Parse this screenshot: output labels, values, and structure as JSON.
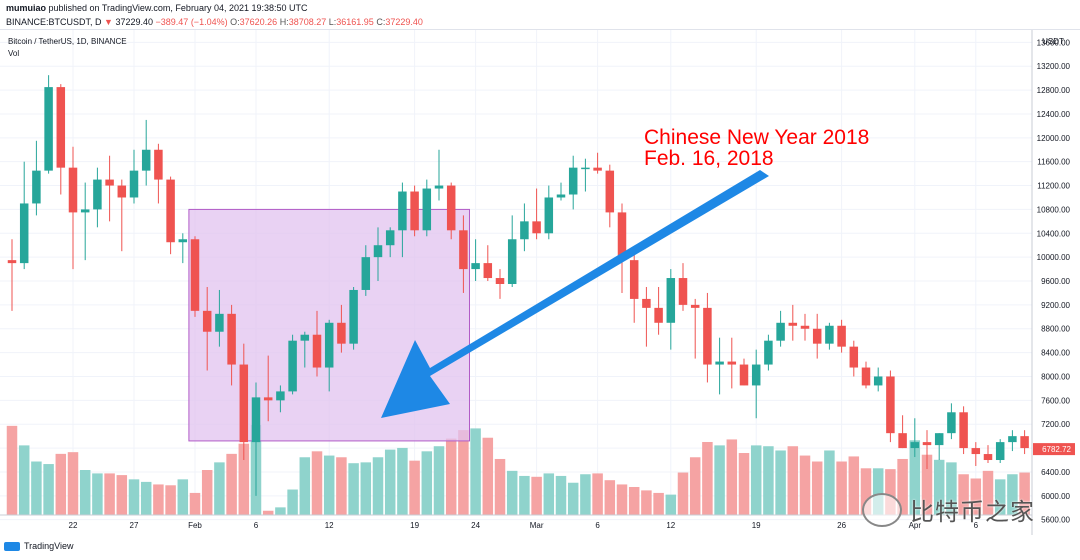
{
  "header": {
    "user": "mumuiao",
    "published": " published on TradingView.com, February 04, 2021 19:38:50 UTC",
    "symbol": "BINANCE:BTCUSDT, D",
    "last": "37229.40",
    "change": "−389.47 (−1.04%)",
    "o_label": "O:",
    "o": "37620.26",
    "h_label": "H:",
    "h": "38708.27",
    "l_label": "L:",
    "l": "36161.95",
    "c_label": "C:",
    "c": "37229.40"
  },
  "legend": {
    "title": "Bitcoin / TetherUS, 1D, BINANCE",
    "vol": "Vol"
  },
  "annotation": {
    "line1": "Chinese New Year 2018",
    "line2": "Feb. 16, 2018",
    "color": "#ff0000"
  },
  "branding": {
    "tradingview": "TradingView",
    "watermark": "比特币之家"
  },
  "colors": {
    "up": "#26a69a",
    "down": "#ef5350",
    "up_vol": "#8fd3cc",
    "down_vol": "#f5a3a3",
    "box_fill": "#e1c3ef",
    "box_stroke": "#b25cc7",
    "arrow": "#1e88e5",
    "price_tag": "#ef5350"
  },
  "chart_data": {
    "type": "candlestick",
    "price_axis": {
      "unit": "USDT",
      "ticks": [
        13600,
        13200,
        12800,
        12400,
        12000,
        11600,
        11200,
        10800,
        10400,
        10000,
        9600,
        9200,
        8800,
        8400,
        8000,
        7600,
        7200,
        6800,
        6400,
        6000,
        5600
      ],
      "range": [
        5360,
        13740
      ],
      "last_price_label": "6782.72",
      "last_price": 6782.72
    },
    "x_ticks": [
      {
        "label": "22",
        "index": 5
      },
      {
        "label": "27",
        "index": 10
      },
      {
        "label": "Feb",
        "index": 15
      },
      {
        "label": "6",
        "index": 20
      },
      {
        "label": "12",
        "index": 26
      },
      {
        "label": "19",
        "index": 33
      },
      {
        "label": "24",
        "index": 38
      },
      {
        "label": "Mar",
        "index": 43
      },
      {
        "label": "6",
        "index": 48
      },
      {
        "label": "12",
        "index": 54
      },
      {
        "label": "19",
        "index": 61
      },
      {
        "label": "26",
        "index": 68
      },
      {
        "label": "Apr",
        "index": 74
      },
      {
        "label": "6",
        "index": 79
      }
    ],
    "highlight_range": {
      "from_index": 14.5,
      "to_index": 37.5,
      "top": 10800,
      "bottom": 6920
    },
    "candles": [
      {
        "o": 9950,
        "h": 10300,
        "l": 9100,
        "c": 9900
      },
      {
        "o": 9900,
        "h": 11600,
        "l": 9800,
        "c": 10900
      },
      {
        "o": 10900,
        "h": 11950,
        "l": 10700,
        "c": 11450
      },
      {
        "o": 11450,
        "h": 13050,
        "l": 11400,
        "c": 12850
      },
      {
        "o": 12850,
        "h": 12900,
        "l": 11050,
        "c": 11500
      },
      {
        "o": 11500,
        "h": 11850,
        "l": 9800,
        "c": 10750
      },
      {
        "o": 10750,
        "h": 11250,
        "l": 9950,
        "c": 10800
      },
      {
        "o": 10800,
        "h": 11500,
        "l": 10500,
        "c": 11300
      },
      {
        "o": 11300,
        "h": 11700,
        "l": 10600,
        "c": 11200
      },
      {
        "o": 11200,
        "h": 11300,
        "l": 10100,
        "c": 11000
      },
      {
        "o": 11000,
        "h": 11800,
        "l": 10900,
        "c": 11450
      },
      {
        "o": 11450,
        "h": 12300,
        "l": 11200,
        "c": 11800
      },
      {
        "o": 11800,
        "h": 11900,
        "l": 10900,
        "c": 11300
      },
      {
        "o": 11300,
        "h": 11350,
        "l": 10050,
        "c": 10250
      },
      {
        "o": 10250,
        "h": 10400,
        "l": 9900,
        "c": 10300
      },
      {
        "o": 10300,
        "h": 10350,
        "l": 9000,
        "c": 9100
      },
      {
        "o": 9100,
        "h": 9500,
        "l": 8100,
        "c": 8750
      },
      {
        "o": 8750,
        "h": 9450,
        "l": 8500,
        "c": 9050
      },
      {
        "o": 9050,
        "h": 9200,
        "l": 7850,
        "c": 8200
      },
      {
        "o": 8200,
        "h": 8550,
        "l": 6600,
        "c": 6900
      },
      {
        "o": 6900,
        "h": 7900,
        "l": 6000,
        "c": 7650
      },
      {
        "o": 7650,
        "h": 8350,
        "l": 7250,
        "c": 7600
      },
      {
        "o": 7600,
        "h": 7850,
        "l": 7400,
        "c": 7750
      },
      {
        "o": 7750,
        "h": 8700,
        "l": 7700,
        "c": 8600
      },
      {
        "o": 8600,
        "h": 8750,
        "l": 8150,
        "c": 8700
      },
      {
        "o": 8700,
        "h": 9100,
        "l": 8000,
        "c": 8150
      },
      {
        "o": 8150,
        "h": 8950,
        "l": 7750,
        "c": 8900
      },
      {
        "o": 8900,
        "h": 9200,
        "l": 8400,
        "c": 8550
      },
      {
        "o": 8550,
        "h": 9500,
        "l": 8450,
        "c": 9450
      },
      {
        "o": 9450,
        "h": 10200,
        "l": 9350,
        "c": 10000
      },
      {
        "o": 10000,
        "h": 10500,
        "l": 9600,
        "c": 10200
      },
      {
        "o": 10200,
        "h": 10500,
        "l": 10000,
        "c": 10450
      },
      {
        "o": 10450,
        "h": 11250,
        "l": 10000,
        "c": 11100
      },
      {
        "o": 11100,
        "h": 11200,
        "l": 10350,
        "c": 10450
      },
      {
        "o": 10450,
        "h": 11300,
        "l": 10350,
        "c": 11150
      },
      {
        "o": 11150,
        "h": 11800,
        "l": 10950,
        "c": 11200
      },
      {
        "o": 11200,
        "h": 11250,
        "l": 10300,
        "c": 10450
      },
      {
        "o": 10450,
        "h": 10700,
        "l": 9400,
        "c": 9800
      },
      {
        "o": 9800,
        "h": 10300,
        "l": 9600,
        "c": 9900
      },
      {
        "o": 9900,
        "h": 10200,
        "l": 9600,
        "c": 9650
      },
      {
        "o": 9650,
        "h": 9800,
        "l": 9300,
        "c": 9550
      },
      {
        "o": 9550,
        "h": 10700,
        "l": 9500,
        "c": 10300
      },
      {
        "o": 10300,
        "h": 10900,
        "l": 10100,
        "c": 10600
      },
      {
        "o": 10600,
        "h": 11150,
        "l": 10300,
        "c": 10400
      },
      {
        "o": 10400,
        "h": 11200,
        "l": 10300,
        "c": 11000
      },
      {
        "o": 11000,
        "h": 11250,
        "l": 10950,
        "c": 11050
      },
      {
        "o": 11050,
        "h": 11700,
        "l": 10800,
        "c": 11500
      },
      {
        "o": 11500,
        "h": 11650,
        "l": 11100,
        "c": 11500
      },
      {
        "o": 11500,
        "h": 11750,
        "l": 11400,
        "c": 11450
      },
      {
        "o": 11450,
        "h": 11550,
        "l": 10500,
        "c": 10750
      },
      {
        "o": 10750,
        "h": 10900,
        "l": 9400,
        "c": 9950
      },
      {
        "o": 9950,
        "h": 10050,
        "l": 8900,
        "c": 9300
      },
      {
        "o": 9300,
        "h": 9500,
        "l": 8500,
        "c": 9150
      },
      {
        "o": 9150,
        "h": 9500,
        "l": 8700,
        "c": 8900
      },
      {
        "o": 8900,
        "h": 9800,
        "l": 8450,
        "c": 9650
      },
      {
        "o": 9650,
        "h": 9900,
        "l": 9100,
        "c": 9200
      },
      {
        "o": 9200,
        "h": 9300,
        "l": 8300,
        "c": 9150
      },
      {
        "o": 9150,
        "h": 9400,
        "l": 7900,
        "c": 8200
      },
      {
        "o": 8200,
        "h": 8650,
        "l": 7700,
        "c": 8250
      },
      {
        "o": 8250,
        "h": 8650,
        "l": 7800,
        "c": 8200
      },
      {
        "o": 8200,
        "h": 8300,
        "l": 7850,
        "c": 7850
      },
      {
        "o": 7850,
        "h": 8450,
        "l": 7300,
        "c": 8200
      },
      {
        "o": 8200,
        "h": 8700,
        "l": 8100,
        "c": 8600
      },
      {
        "o": 8600,
        "h": 9100,
        "l": 8500,
        "c": 8900
      },
      {
        "o": 8900,
        "h": 9200,
        "l": 8600,
        "c": 8850
      },
      {
        "o": 8850,
        "h": 9050,
        "l": 8600,
        "c": 8800
      },
      {
        "o": 8800,
        "h": 9050,
        "l": 8300,
        "c": 8550
      },
      {
        "o": 8550,
        "h": 8900,
        "l": 8450,
        "c": 8850
      },
      {
        "o": 8850,
        "h": 8950,
        "l": 8400,
        "c": 8500
      },
      {
        "o": 8500,
        "h": 8600,
        "l": 8000,
        "c": 8150
      },
      {
        "o": 8150,
        "h": 8250,
        "l": 7800,
        "c": 7850
      },
      {
        "o": 7850,
        "h": 8150,
        "l": 7750,
        "c": 8000
      },
      {
        "o": 8000,
        "h": 8100,
        "l": 6900,
        "c": 7050
      },
      {
        "o": 7050,
        "h": 7350,
        "l": 6800,
        "c": 6800
      },
      {
        "o": 6800,
        "h": 7300,
        "l": 6650,
        "c": 6900
      },
      {
        "o": 6900,
        "h": 7100,
        "l": 6450,
        "c": 6850
      },
      {
        "o": 6850,
        "h": 7050,
        "l": 6600,
        "c": 7050
      },
      {
        "o": 7050,
        "h": 7550,
        "l": 6950,
        "c": 7400
      },
      {
        "o": 7400,
        "h": 7500,
        "l": 6700,
        "c": 6800
      },
      {
        "o": 6800,
        "h": 6900,
        "l": 6500,
        "c": 6700
      },
      {
        "o": 6700,
        "h": 6850,
        "l": 6550,
        "c": 6600
      },
      {
        "o": 6600,
        "h": 6950,
        "l": 6550,
        "c": 6900
      },
      {
        "o": 6900,
        "h": 7100,
        "l": 6750,
        "c": 7000
      },
      {
        "o": 7000,
        "h": 7100,
        "l": 6700,
        "c": 6800
      },
      {
        "o": 6800,
        "h": 7000,
        "l": 6550,
        "c": 6780
      }
    ],
    "volume": [
      1.05,
      0.82,
      0.63,
      0.6,
      0.72,
      0.74,
      0.53,
      0.49,
      0.49,
      0.47,
      0.42,
      0.39,
      0.36,
      0.35,
      0.42,
      0.26,
      0.53,
      0.62,
      0.72,
      0.84,
      1.06,
      0.05,
      0.09,
      0.3,
      0.68,
      0.75,
      0.7,
      0.68,
      0.61,
      0.62,
      0.68,
      0.77,
      0.79,
      0.64,
      0.75,
      0.81,
      0.9,
      1.0,
      1.02,
      0.91,
      0.66,
      0.52,
      0.46,
      0.45,
      0.49,
      0.46,
      0.38,
      0.48,
      0.49,
      0.41,
      0.36,
      0.33,
      0.29,
      0.26,
      0.24,
      0.5,
      0.68,
      0.86,
      0.82,
      0.89,
      0.73,
      0.82,
      0.81,
      0.76,
      0.81,
      0.7,
      0.63,
      0.76,
      0.63,
      0.69,
      0.55,
      0.55,
      0.54,
      0.66,
      0.88,
      0.71,
      0.65,
      0.62,
      0.48,
      0.43,
      0.52,
      0.42,
      0.48,
      0.5,
      0.63
    ]
  }
}
